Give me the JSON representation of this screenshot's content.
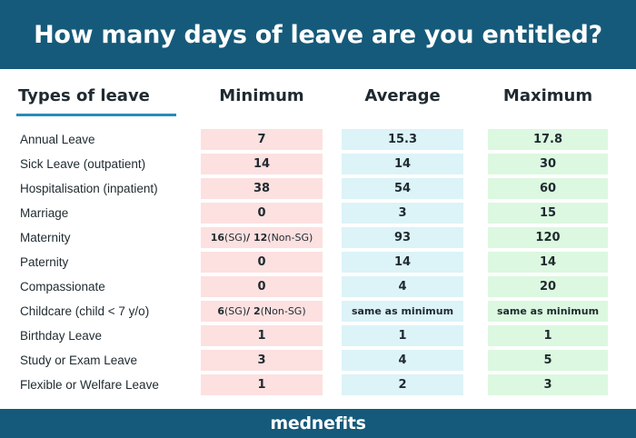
{
  "title": "How many days of leave are you entitled?",
  "columns": {
    "type": "Types of leave",
    "min": "Minimum",
    "avg": "Average",
    "max": "Maximum"
  },
  "rows": [
    {
      "label": "Annual Leave",
      "min": "7",
      "avg": "15.3",
      "max": "17.8"
    },
    {
      "label": "Sick Leave (outpatient)",
      "min": "14",
      "avg": "14",
      "max": "30"
    },
    {
      "label": "Hospitalisation (inpatient)",
      "min": "38",
      "avg": "54",
      "max": "60"
    },
    {
      "label": "Marriage",
      "min": "0",
      "avg": "3",
      "max": "15"
    },
    {
      "label": "Maternity",
      "min_parts": [
        "16",
        " (SG) ",
        "/ 12",
        " (Non-SG)"
      ],
      "avg": "93",
      "max": "120"
    },
    {
      "label": "Paternity",
      "min": "0",
      "avg": "14",
      "max": "14"
    },
    {
      "label": "Compassionate",
      "min": "0",
      "avg": "4",
      "max": "20"
    },
    {
      "label": "Childcare (child < 7 y/o)",
      "min_parts": [
        "6",
        " (SG) ",
        "/ 2",
        " (Non-SG)"
      ],
      "avg": "same as minimum",
      "max": "same as minimum"
    },
    {
      "label": "Birthday Leave",
      "min": "1",
      "avg": "1",
      "max": "1"
    },
    {
      "label": "Study or Exam Leave",
      "min": "3",
      "avg": "4",
      "max": "5"
    },
    {
      "label": "Flexible or Welfare Leave",
      "min": "1",
      "avg": "2",
      "max": "3"
    }
  ],
  "footer": {
    "logo": "mednefits"
  },
  "colors": {
    "banner": "#155a7a",
    "accent": "#2a8ab8",
    "min_fill": "#fde0e0",
    "avg_fill": "#dcf3f8",
    "max_fill": "#dcf8e0"
  }
}
